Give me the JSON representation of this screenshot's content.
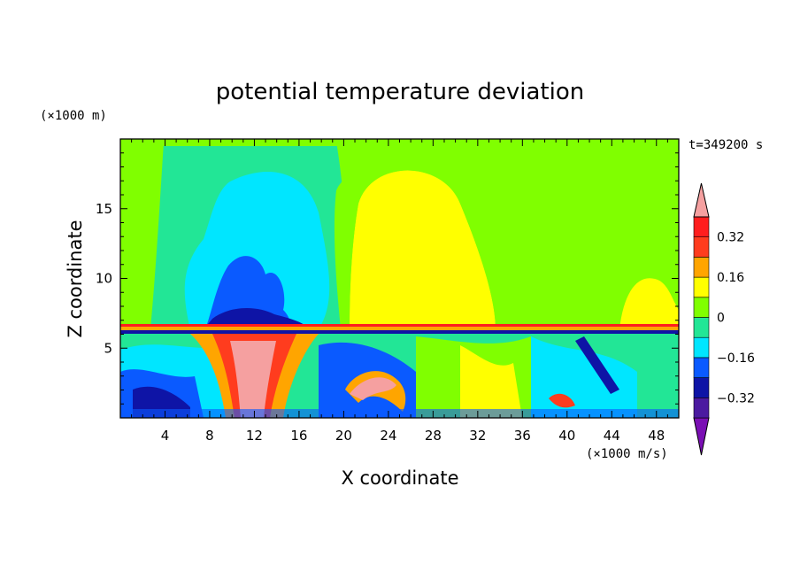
{
  "chart_data": {
    "type": "heatmap",
    "title": "potential temperature deviation",
    "xlabel": "X coordinate",
    "ylabel": "Z coordinate",
    "x_unit": "(×1000 m/s)",
    "y_unit": "(×1000 m)",
    "time_label": "t=349200 s",
    "xlim": [
      0,
      50
    ],
    "ylim": [
      0,
      20
    ],
    "x_ticks": [
      4,
      8,
      12,
      16,
      20,
      24,
      28,
      32,
      36,
      40,
      44,
      48
    ],
    "y_ticks": [
      5,
      10,
      15
    ],
    "colorbar": {
      "levels": [
        -0.4,
        -0.32,
        -0.24,
        -0.16,
        -0.08,
        0,
        0.08,
        0.16,
        0.24,
        0.32,
        0.4
      ],
      "colors": [
        "#7a0fb4",
        "#4b1aa0",
        "#0e14a6",
        "#0a5aff",
        "#00e6ff",
        "#22e696",
        "#80ff00",
        "#ffff00",
        "#ffa500",
        "#ff3c1e",
        "#ff1e1e",
        "#f5a0a0"
      ],
      "tick_labels": [
        "0.32",
        "0.16",
        "0",
        "−0.16",
        "−0.32"
      ],
      "tick_values": [
        0.32,
        0.16,
        0,
        -0.16,
        -0.32
      ]
    }
  }
}
